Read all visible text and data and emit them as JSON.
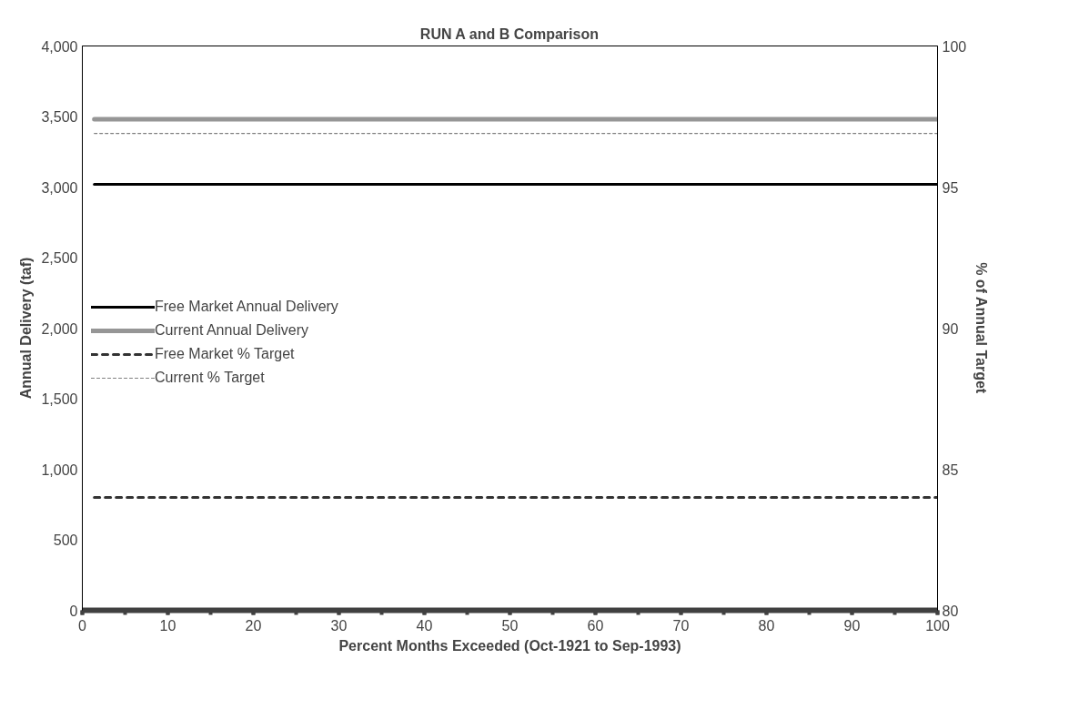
{
  "chart_data": {
    "type": "line",
    "title": "RUN A and B Comparison",
    "xlabel": "Percent Months Exceeded (Oct-1921 to Sep-1993)",
    "ylabel": "Annual Delivery (taf)",
    "y2label": "% of Annual Target",
    "x": [
      1.4,
      100
    ],
    "series": [
      {
        "name": "Free Market Annual Delivery",
        "color": "#000000",
        "values": [
          3020,
          3020
        ],
        "line_style": "solid"
      },
      {
        "name": "Current Annual Delivery",
        "color": "#969696",
        "values": [
          3480,
          3480
        ],
        "line_style": "solid"
      },
      {
        "name": "Free Market % Target",
        "color": "#333333",
        "values": [
          84.0,
          84.0
        ],
        "axis": "y2",
        "line_style": "dashed"
      },
      {
        "name": "Current % Target",
        "color": "#808080",
        "values": [
          96.9,
          96.9
        ],
        "axis": "y2",
        "line_style": "dotted"
      }
    ],
    "xlim": [
      0,
      100
    ],
    "xticks": [
      0,
      10,
      20,
      30,
      40,
      50,
      60,
      70,
      80,
      90,
      100
    ],
    "ylim": [
      0,
      4000
    ],
    "yticks": [
      {
        "value": 0,
        "label": "0"
      },
      {
        "value": 500,
        "label": "500"
      },
      {
        "value": 1000,
        "label": "1,000"
      },
      {
        "value": 1500,
        "label": "1,500"
      },
      {
        "value": 2000,
        "label": "2,000"
      },
      {
        "value": 2500,
        "label": "2,500"
      },
      {
        "value": 3000,
        "label": "3,000"
      },
      {
        "value": 3500,
        "label": "3,500"
      },
      {
        "value": 4000,
        "label": "4,000"
      }
    ],
    "y2lim": [
      80,
      100
    ],
    "y2ticks": [
      80,
      85,
      90,
      95,
      100
    ],
    "grid": false,
    "legend": "left",
    "marker": "none"
  }
}
